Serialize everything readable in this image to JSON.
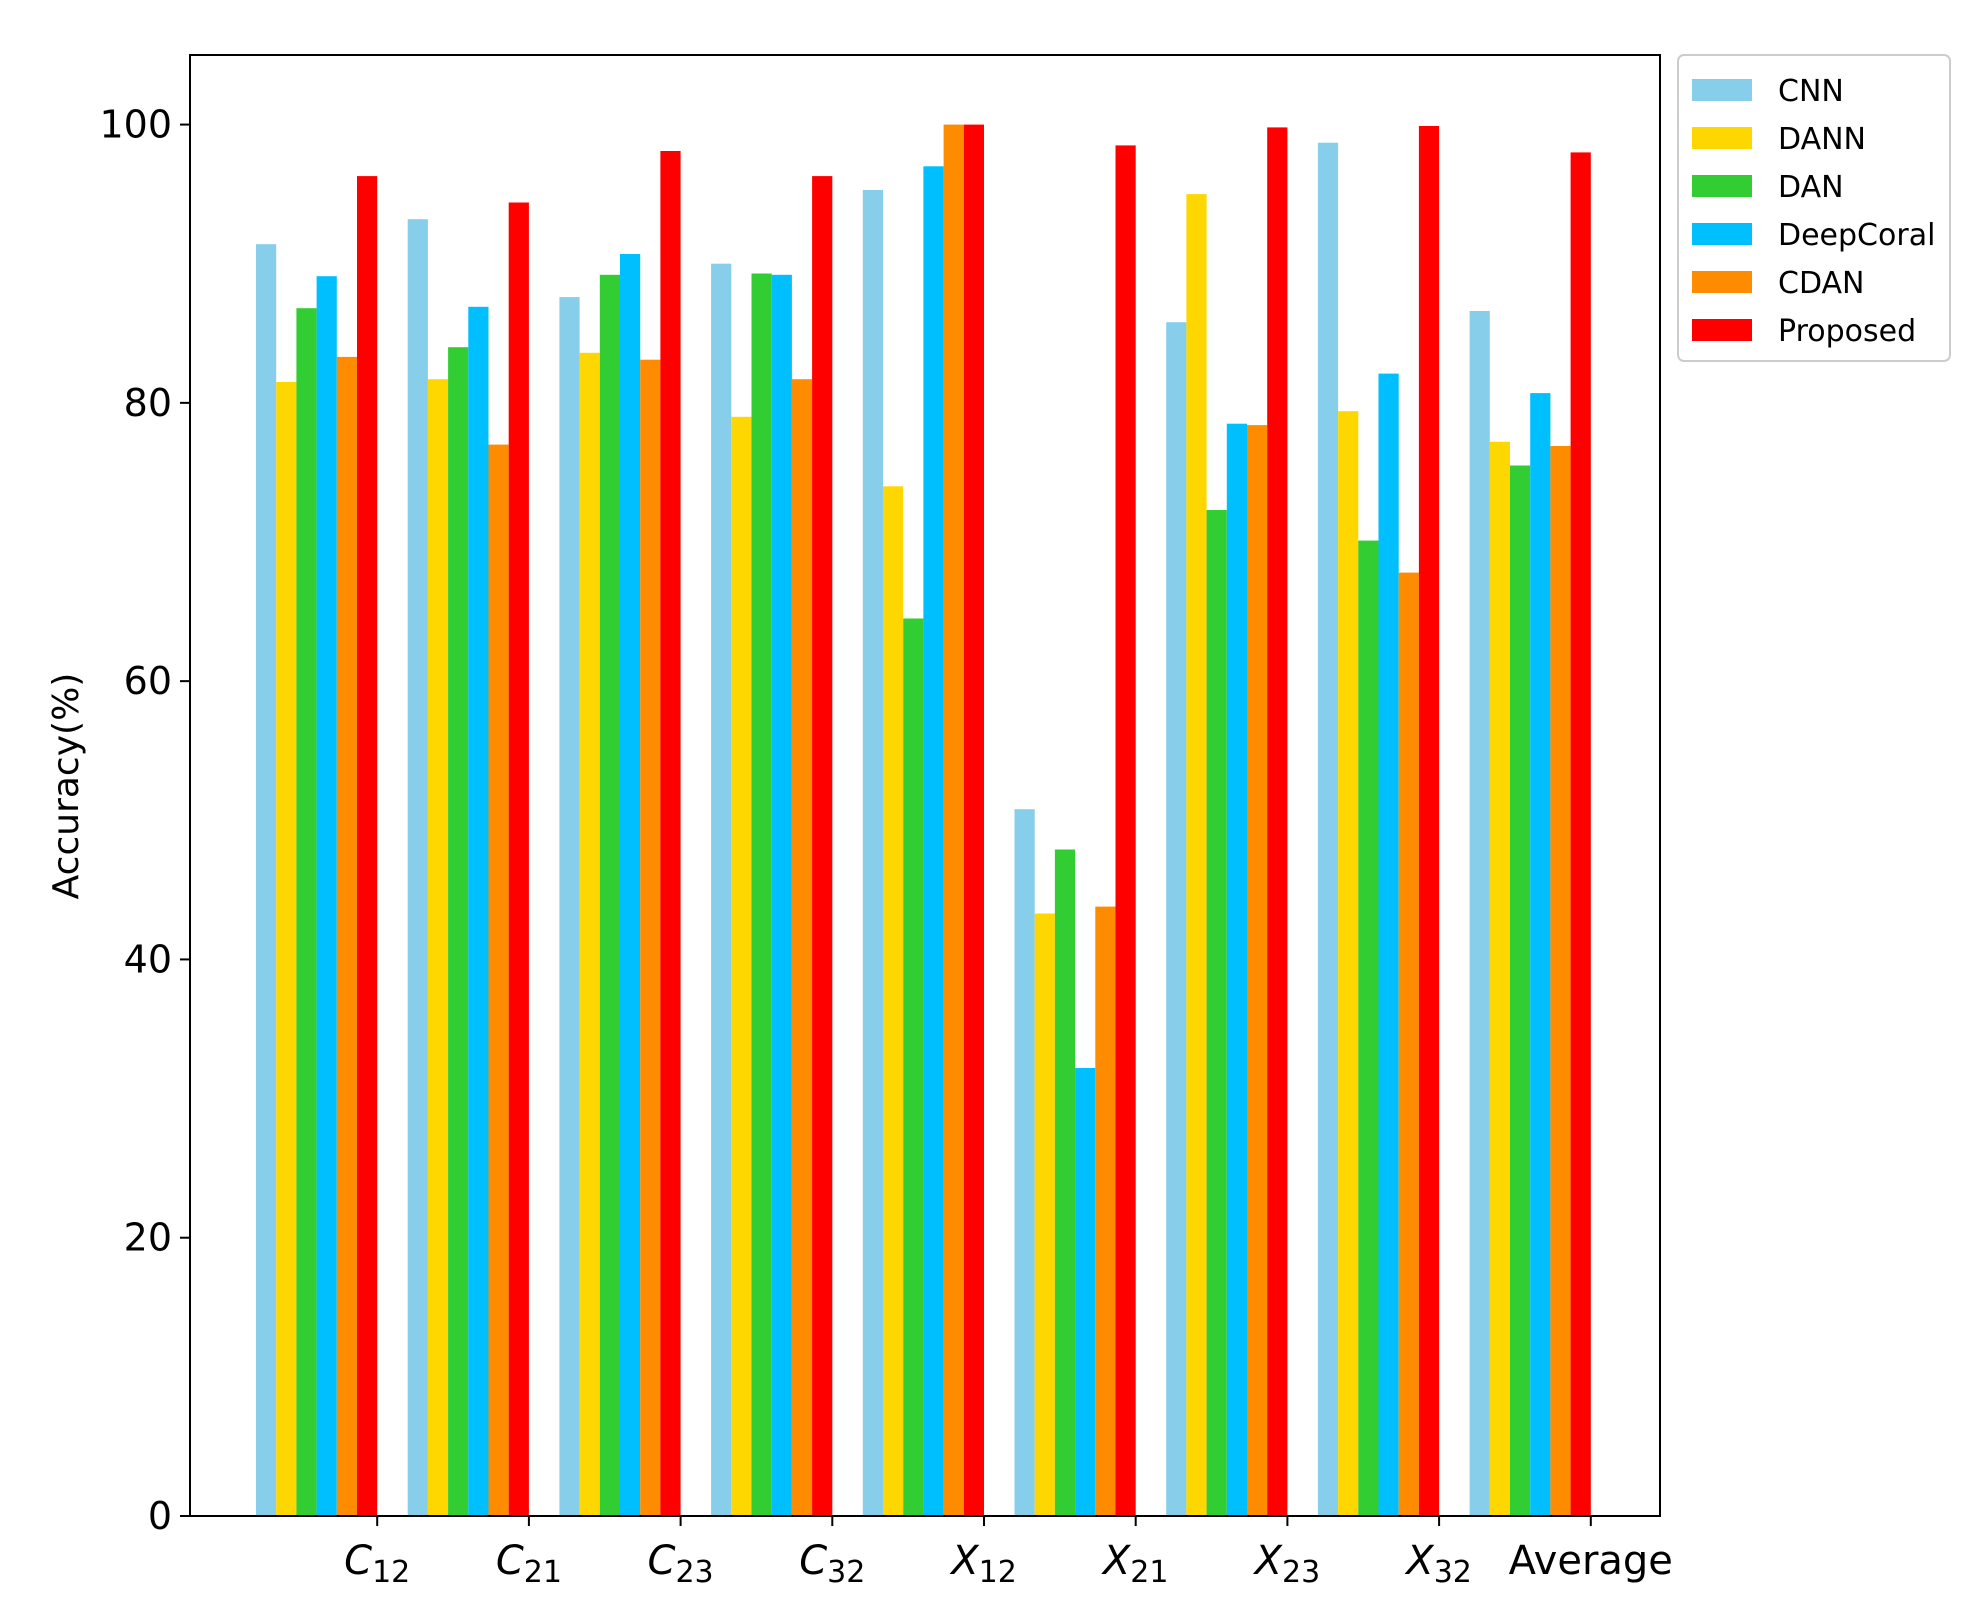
{
  "chart_data": {
    "type": "bar",
    "ylabel": "Accuracy(%)",
    "xlabel": "",
    "ylim": [
      0,
      105
    ],
    "yticks": [
      0,
      20,
      40,
      60,
      80,
      100
    ],
    "legend_position": "outside-top-right",
    "grid": false,
    "categories": [
      {
        "main": "C",
        "sub": "12"
      },
      {
        "main": "C",
        "sub": "21"
      },
      {
        "main": "C",
        "sub": "23"
      },
      {
        "main": "C",
        "sub": "32"
      },
      {
        "main": "X",
        "sub": "12"
      },
      {
        "main": "X",
        "sub": "21"
      },
      {
        "main": "X",
        "sub": "23"
      },
      {
        "main": "X",
        "sub": "32"
      },
      {
        "main": "Average",
        "sub": ""
      }
    ],
    "series": [
      {
        "name": "CNN",
        "color": "#87ceeb",
        "values": [
          91.4,
          93.2,
          87.6,
          90.0,
          95.3,
          50.8,
          85.8,
          98.7,
          86.6
        ]
      },
      {
        "name": "DANN",
        "color": "#ffd700",
        "values": [
          81.5,
          81.7,
          83.6,
          79.0,
          74.0,
          43.3,
          95.0,
          79.4,
          77.2
        ]
      },
      {
        "name": "DAN",
        "color": "#32cd32",
        "values": [
          86.8,
          84.0,
          89.2,
          89.3,
          64.5,
          47.9,
          72.3,
          70.1,
          75.5
        ]
      },
      {
        "name": "DeepCoral",
        "color": "#00bfff",
        "values": [
          89.1,
          86.9,
          90.7,
          89.2,
          97.0,
          32.2,
          78.5,
          82.1,
          80.7
        ]
      },
      {
        "name": "CDAN",
        "color": "#ff8c00",
        "values": [
          83.3,
          77.0,
          83.1,
          81.7,
          100.0,
          43.8,
          78.4,
          67.8,
          76.9
        ]
      },
      {
        "name": "Proposed",
        "color": "#ff0000",
        "values": [
          96.3,
          94.4,
          98.1,
          96.3,
          100.0,
          98.5,
          99.8,
          99.9,
          98.0
        ]
      }
    ]
  }
}
